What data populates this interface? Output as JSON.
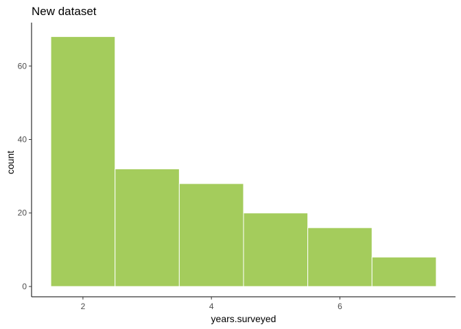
{
  "chart_data": {
    "type": "bar",
    "title": "New dataset",
    "xlabel": "years.surveyed",
    "ylabel": "count",
    "bins": [
      {
        "x_start": 1.5,
        "x_end": 2.5,
        "count": 68
      },
      {
        "x_start": 2.5,
        "x_end": 3.5,
        "count": 32
      },
      {
        "x_start": 3.5,
        "x_end": 4.5,
        "count": 28
      },
      {
        "x_start": 4.5,
        "x_end": 5.5,
        "count": 20
      },
      {
        "x_start": 5.5,
        "x_end": 6.5,
        "count": 16
      },
      {
        "x_start": 6.5,
        "x_end": 7.5,
        "count": 8
      }
    ],
    "xlim": [
      1.2,
      7.8
    ],
    "ylim": [
      -2.8,
      71.8
    ],
    "x_ticks": [
      2,
      4,
      6
    ],
    "y_ticks": [
      0,
      20,
      40,
      60
    ],
    "fill_color": "#a4cc5c",
    "bar_outline_color": "#ffffff",
    "grid": false,
    "legend": "none"
  }
}
